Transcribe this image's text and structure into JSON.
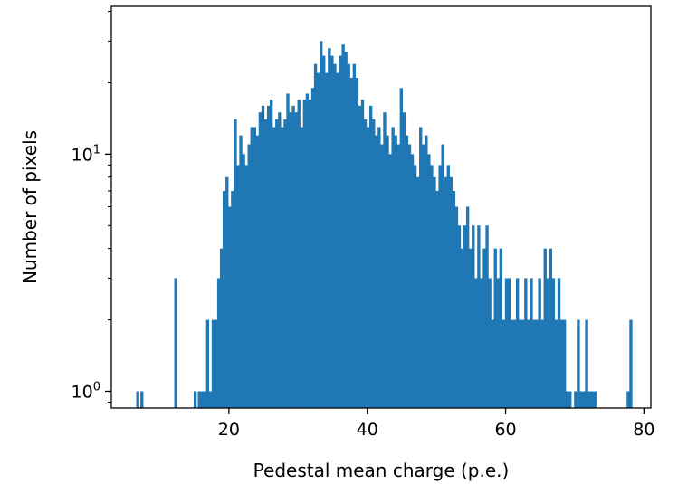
{
  "chart_data": {
    "type": "bar",
    "subtype": "histogram",
    "xlabel": "Pedestal mean charge (p.e.)",
    "ylabel": "Number of pixels",
    "yscale": "log",
    "xlim": [
      3,
      81
    ],
    "ylim": [
      0.85,
      42
    ],
    "xticks": [
      20,
      40,
      60,
      80
    ],
    "yticks": [
      {
        "base": "10",
        "exp": "0",
        "value": 1
      },
      {
        "base": "10",
        "exp": "1",
        "value": 10
      }
    ],
    "bar_color": "#1f77b4",
    "grid": false,
    "bin_width": 0.4,
    "bins": [
      [
        6.8,
        1
      ],
      [
        7.4,
        1
      ],
      [
        12.3,
        3
      ],
      [
        15.1,
        1
      ],
      [
        15.7,
        1
      ],
      [
        16.1,
        1
      ],
      [
        16.5,
        1
      ],
      [
        16.9,
        2
      ],
      [
        17.3,
        1
      ],
      [
        17.7,
        2
      ],
      [
        18.1,
        2
      ],
      [
        18.5,
        3
      ],
      [
        18.9,
        4
      ],
      [
        19.3,
        7
      ],
      [
        19.7,
        8
      ],
      [
        20.1,
        6
      ],
      [
        20.5,
        7
      ],
      [
        20.9,
        14
      ],
      [
        21.3,
        9
      ],
      [
        21.7,
        12
      ],
      [
        22.1,
        10
      ],
      [
        22.5,
        9
      ],
      [
        22.9,
        11
      ],
      [
        23.3,
        13
      ],
      [
        23.7,
        13
      ],
      [
        24.1,
        12
      ],
      [
        24.5,
        15
      ],
      [
        24.9,
        16
      ],
      [
        25.3,
        14
      ],
      [
        25.7,
        16
      ],
      [
        26.1,
        17
      ],
      [
        26.5,
        13
      ],
      [
        26.9,
        14
      ],
      [
        27.3,
        15
      ],
      [
        27.7,
        13
      ],
      [
        28.1,
        14
      ],
      [
        28.5,
        18
      ],
      [
        28.9,
        15
      ],
      [
        29.3,
        16
      ],
      [
        29.7,
        15
      ],
      [
        30.1,
        17
      ],
      [
        30.5,
        13
      ],
      [
        30.9,
        17
      ],
      [
        31.3,
        18
      ],
      [
        31.7,
        17
      ],
      [
        32.1,
        19
      ],
      [
        32.5,
        24
      ],
      [
        32.9,
        22
      ],
      [
        33.3,
        30
      ],
      [
        33.7,
        26
      ],
      [
        34.1,
        22
      ],
      [
        34.5,
        28
      ],
      [
        34.9,
        26
      ],
      [
        35.3,
        24
      ],
      [
        35.7,
        22
      ],
      [
        36.1,
        26
      ],
      [
        36.5,
        29
      ],
      [
        36.9,
        27
      ],
      [
        37.3,
        24
      ],
      [
        37.7,
        21
      ],
      [
        38.1,
        24
      ],
      [
        38.5,
        21
      ],
      [
        38.9,
        16
      ],
      [
        39.3,
        17
      ],
      [
        39.7,
        14
      ],
      [
        40.1,
        13
      ],
      [
        40.5,
        16
      ],
      [
        40.9,
        14
      ],
      [
        41.3,
        12
      ],
      [
        41.7,
        13
      ],
      [
        42.1,
        11
      ],
      [
        42.5,
        15
      ],
      [
        42.9,
        12
      ],
      [
        43.3,
        10
      ],
      [
        43.7,
        13
      ],
      [
        44.1,
        12
      ],
      [
        44.5,
        11
      ],
      [
        44.9,
        19
      ],
      [
        45.3,
        15
      ],
      [
        45.7,
        12
      ],
      [
        46.1,
        11
      ],
      [
        46.5,
        10
      ],
      [
        46.9,
        9
      ],
      [
        47.3,
        8
      ],
      [
        47.7,
        13
      ],
      [
        48.1,
        11
      ],
      [
        48.5,
        12
      ],
      [
        48.9,
        10
      ],
      [
        49.3,
        9
      ],
      [
        49.7,
        8
      ],
      [
        50.1,
        7
      ],
      [
        50.5,
        9
      ],
      [
        50.9,
        11
      ],
      [
        51.3,
        8
      ],
      [
        51.7,
        9
      ],
      [
        52.1,
        8
      ],
      [
        52.5,
        7
      ],
      [
        52.9,
        6
      ],
      [
        53.3,
        5
      ],
      [
        53.7,
        4
      ],
      [
        54.1,
        5
      ],
      [
        54.5,
        6
      ],
      [
        54.9,
        4
      ],
      [
        55.3,
        5
      ],
      [
        55.7,
        3
      ],
      [
        56.1,
        5
      ],
      [
        56.5,
        3
      ],
      [
        56.9,
        4
      ],
      [
        57.3,
        5
      ],
      [
        57.7,
        3
      ],
      [
        58.1,
        2
      ],
      [
        58.5,
        4
      ],
      [
        58.9,
        3
      ],
      [
        59.3,
        4
      ],
      [
        59.7,
        2
      ],
      [
        60.1,
        3
      ],
      [
        60.5,
        3
      ],
      [
        60.9,
        2
      ],
      [
        61.3,
        2
      ],
      [
        61.7,
        3
      ],
      [
        62.1,
        2
      ],
      [
        62.5,
        2
      ],
      [
        62.9,
        3
      ],
      [
        63.3,
        2
      ],
      [
        63.7,
        3
      ],
      [
        64.1,
        2
      ],
      [
        64.5,
        2
      ],
      [
        64.9,
        3
      ],
      [
        65.3,
        2
      ],
      [
        65.7,
        4
      ],
      [
        66.1,
        3
      ],
      [
        66.5,
        4
      ],
      [
        66.9,
        3
      ],
      [
        67.3,
        2
      ],
      [
        67.7,
        3
      ],
      [
        68.1,
        2
      ],
      [
        68.5,
        2
      ],
      [
        68.9,
        1
      ],
      [
        69.3,
        1
      ],
      [
        70.1,
        1
      ],
      [
        70.5,
        2
      ],
      [
        70.9,
        1
      ],
      [
        71.3,
        1
      ],
      [
        71.7,
        2
      ],
      [
        72.1,
        1
      ],
      [
        72.5,
        1
      ],
      [
        72.9,
        1
      ],
      [
        77.7,
        1
      ],
      [
        78.1,
        2
      ]
    ]
  }
}
